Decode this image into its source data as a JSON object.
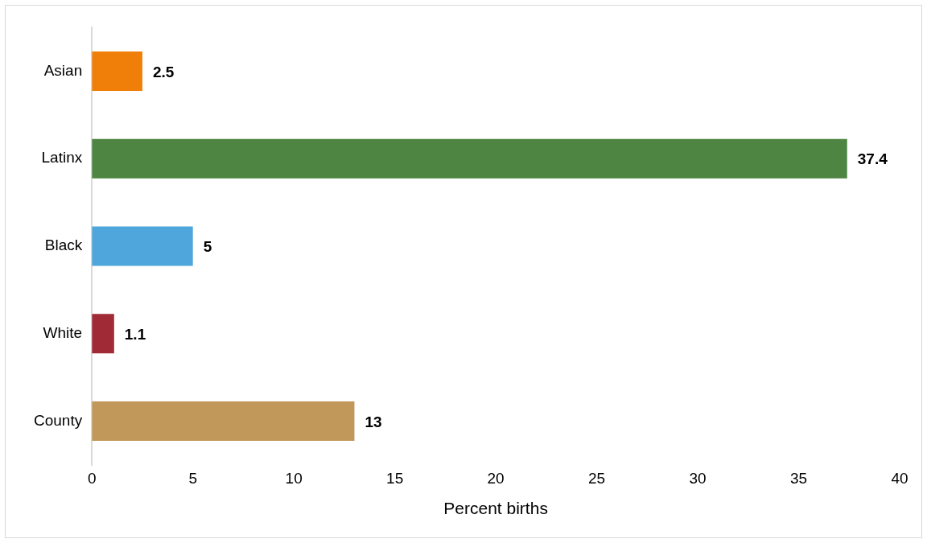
{
  "chart_data": {
    "type": "bar",
    "orientation": "horizontal",
    "xlabel": "Percent births",
    "categories": [
      "Asian",
      "Latinx",
      "Black",
      "White",
      "County"
    ],
    "values": [
      2.5,
      37.4,
      5,
      1.1,
      13
    ],
    "colors": [
      "#f07f09",
      "#4e8542",
      "#4ea6dc",
      "#a12a37",
      "#c19859"
    ],
    "xlim": [
      0,
      40
    ],
    "xticks": [
      0,
      5,
      10,
      15,
      20,
      25,
      30,
      35,
      40
    ],
    "grid": false,
    "legend": false,
    "data_labels": true
  }
}
